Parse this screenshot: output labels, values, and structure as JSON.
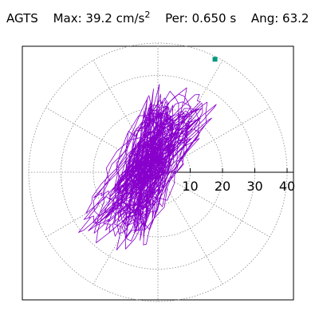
{
  "header": {
    "station": "AGTS",
    "max_label": "Max:",
    "max_value": "39.2",
    "max_unit": "cm/s",
    "max_exp": "2",
    "per_label": "Per:",
    "per_value": "0.650 s",
    "ang_label": "Ang:",
    "ang_value": "63.2"
  },
  "chart_data": {
    "type": "polar-orbit",
    "title": "AGTS Max: 39.2 cm/s2 Per: 0.650 s Ang: 63.2",
    "radial_ticks": [
      "10",
      "20",
      "30",
      "40"
    ],
    "radial_values": [
      10,
      20,
      30,
      40
    ],
    "r_max": 40,
    "max_amplitude": 39.2,
    "max_angle_deg": 63.2,
    "grid": true,
    "spoke_angles_deg": [
      0,
      30,
      60,
      90,
      120,
      150,
      180,
      210,
      240,
      270,
      300,
      330
    ],
    "colors": {
      "trace": "#8800cc",
      "marker": "#00997a",
      "grid": "#888888",
      "axis": "#000000"
    }
  }
}
